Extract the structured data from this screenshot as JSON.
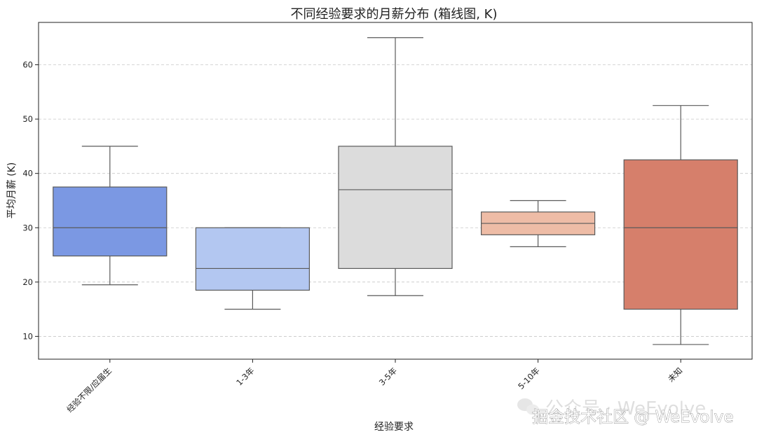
{
  "chart_data": {
    "type": "box",
    "title": "不同经验要求的月薪分布 (箱线图, K)",
    "xlabel": "经验要求",
    "ylabel": "平均月薪 (K)",
    "ylim": [
      5.8,
      67.8
    ],
    "yticks": [
      10,
      20,
      30,
      40,
      50,
      60
    ],
    "grid": "y-dashed",
    "categories": [
      "经验不限/应届生",
      "1-3年",
      "3-5年",
      "5-10年",
      "未知"
    ],
    "boxes": [
      {
        "category": "经验不限/应届生",
        "whisker_low": 19.5,
        "q1": 24.8,
        "median": 30,
        "q3": 37.5,
        "whisker_high": 45,
        "color": "#7b98e3"
      },
      {
        "category": "1-3年",
        "whisker_low": 15,
        "q1": 18.5,
        "median": 22.5,
        "q3": 30,
        "whisker_high": 30,
        "color": "#b3c7f1"
      },
      {
        "category": "3-5年",
        "whisker_low": 17.5,
        "q1": 22.5,
        "median": 37,
        "q3": 45,
        "whisker_high": 65,
        "color": "#dcdcdc"
      },
      {
        "category": "5-10年",
        "whisker_low": 26.5,
        "q1": 28.7,
        "median": 30.8,
        "q3": 32.9,
        "whisker_high": 35,
        "color": "#eebca6"
      },
      {
        "category": "未知",
        "whisker_low": 8.5,
        "q1": 15,
        "median": 30,
        "q3": 42.5,
        "whisker_high": 52.5,
        "color": "#d67f6b"
      }
    ]
  },
  "watermark": {
    "line1": "公众号 · WeEvolve",
    "line2": "掘金技术社区 @ WeEvolve"
  }
}
